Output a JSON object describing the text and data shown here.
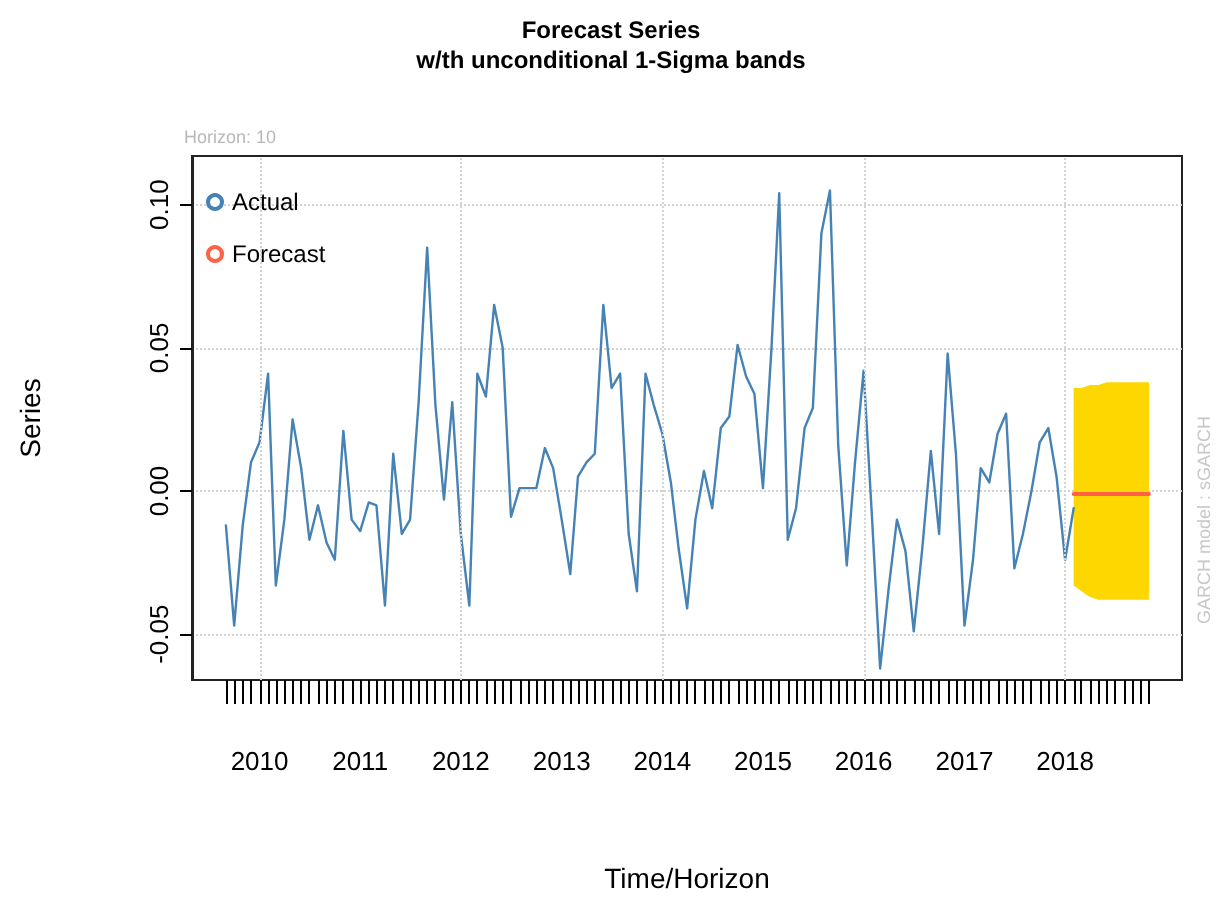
{
  "chart_data": {
    "type": "line",
    "title": "Forecast Series",
    "subtitle": "w/th unconditional 1-Sigma bands",
    "xlabel": "Time/Horizon",
    "ylabel": "Series",
    "annotations": [
      "Horizon: 10",
      "GARCH model : sGARCH"
    ],
    "x": [
      "2009-09",
      "2009-10",
      "2009-11",
      "2009-12",
      "2010-01",
      "2010-02",
      "2010-03",
      "2010-04",
      "2010-05",
      "2010-06",
      "2010-07",
      "2010-08",
      "2010-09",
      "2010-10",
      "2010-11",
      "2010-12",
      "2011-01",
      "2011-02",
      "2011-03",
      "2011-04",
      "2011-05",
      "2011-06",
      "2011-07",
      "2011-08",
      "2011-09",
      "2011-10",
      "2011-11",
      "2011-12",
      "2012-01",
      "2012-02",
      "2012-03",
      "2012-04",
      "2012-05",
      "2012-06",
      "2012-07",
      "2012-08",
      "2012-09",
      "2012-10",
      "2012-11",
      "2012-12",
      "2013-01",
      "2013-02",
      "2013-03",
      "2013-04",
      "2013-05",
      "2013-06",
      "2013-07",
      "2013-08",
      "2013-09",
      "2013-10",
      "2013-11",
      "2013-12",
      "2014-01",
      "2014-02",
      "2014-03",
      "2014-04",
      "2014-05",
      "2014-06",
      "2014-07",
      "2014-08",
      "2014-09",
      "2014-10",
      "2014-11",
      "2014-12",
      "2015-01",
      "2015-02",
      "2015-03",
      "2015-04",
      "2015-05",
      "2015-06",
      "2015-07",
      "2015-08",
      "2015-09",
      "2015-10",
      "2015-11",
      "2015-12",
      "2016-01",
      "2016-02",
      "2016-03",
      "2016-04",
      "2016-05",
      "2016-06",
      "2016-07",
      "2016-08",
      "2016-09",
      "2016-10",
      "2016-11",
      "2016-12",
      "2017-01",
      "2017-02",
      "2017-03",
      "2017-04",
      "2017-05",
      "2017-06",
      "2017-07",
      "2017-08",
      "2017-09",
      "2017-10",
      "2017-11",
      "2017-12",
      "2018-01",
      "2018-02"
    ],
    "series": [
      {
        "name": "Actual",
        "color": "#4682b4",
        "values": [
          -0.012,
          -0.047,
          -0.012,
          0.01,
          0.017,
          0.041,
          -0.033,
          -0.01,
          0.025,
          0.008,
          -0.017,
          -0.005,
          -0.018,
          -0.024,
          0.021,
          -0.01,
          -0.014,
          -0.004,
          -0.005,
          -0.04,
          0.013,
          -0.015,
          -0.01,
          0.031,
          0.085,
          0.03,
          -0.003,
          0.031,
          -0.015,
          -0.04,
          0.041,
          0.033,
          0.065,
          0.05,
          -0.009,
          0.001,
          0.001,
          0.001,
          0.015,
          0.008,
          -0.01,
          -0.029,
          0.005,
          0.01,
          0.013,
          0.065,
          0.036,
          0.041,
          -0.015,
          -0.035,
          0.041,
          0.03,
          0.02,
          0.003,
          -0.02,
          -0.041,
          -0.01,
          0.007,
          -0.006,
          0.022,
          0.026,
          0.051,
          0.04,
          0.034,
          0.001,
          0.05,
          0.104,
          -0.017,
          -0.006,
          0.022,
          0.029,
          0.09,
          0.105,
          0.016,
          -0.026,
          0.01,
          0.042,
          -0.01,
          -0.062,
          -0.034,
          -0.01,
          -0.021,
          -0.049,
          -0.02,
          0.014,
          -0.015,
          0.048,
          0.013,
          -0.047,
          -0.024,
          0.008,
          0.003,
          0.02,
          0.027,
          -0.027,
          -0.015,
          0.0,
          0.017,
          0.022,
          0.005,
          -0.024,
          -0.006
        ]
      },
      {
        "name": "Forecast",
        "color": "#ff6347",
        "x": [
          "2018-02",
          "2018-03",
          "2018-04",
          "2018-05",
          "2018-06",
          "2018-07",
          "2018-08",
          "2018-09",
          "2018-10",
          "2018-11"
        ],
        "values": [
          -0.001,
          -0.001,
          -0.001,
          -0.001,
          -0.001,
          -0.001,
          -0.001,
          -0.001,
          -0.001,
          -0.001
        ],
        "lower": [
          -0.033,
          -0.035,
          -0.037,
          -0.038,
          -0.038,
          -0.038,
          -0.038,
          -0.038,
          -0.038,
          -0.038
        ],
        "upper": [
          0.036,
          0.036,
          0.037,
          0.037,
          0.038,
          0.038,
          0.038,
          0.038,
          0.038,
          0.038
        ]
      }
    ],
    "xlim": [
      "2009-05",
      "2019-03"
    ],
    "xticks": [
      {
        "value": "2009-09",
        "label": null
      },
      {
        "value": "2009-10",
        "label": null
      },
      {
        "value": "2009-11",
        "label": null
      },
      {
        "value": "2009-12",
        "label": null
      },
      {
        "value": "2010-01",
        "label": "2010"
      },
      {
        "value": "2010-02",
        "label": null
      },
      {
        "value": "2010-03",
        "label": null
      },
      {
        "value": "2010-04",
        "label": null
      },
      {
        "value": "2010-05",
        "label": null
      },
      {
        "value": "2010-06",
        "label": null
      },
      {
        "value": "2010-07",
        "label": null
      },
      {
        "value": "2010-08",
        "label": null
      },
      {
        "value": "2010-09",
        "label": null
      },
      {
        "value": "2010-10",
        "label": null
      },
      {
        "value": "2010-11",
        "label": null
      },
      {
        "value": "2010-12",
        "label": null
      },
      {
        "value": "2011-01",
        "label": "2011"
      },
      {
        "value": "2011-02",
        "label": null
      },
      {
        "value": "2011-03",
        "label": null
      },
      {
        "value": "2011-04",
        "label": null
      },
      {
        "value": "2011-05",
        "label": null
      },
      {
        "value": "2011-06",
        "label": null
      },
      {
        "value": "2011-07",
        "label": null
      },
      {
        "value": "2011-08",
        "label": null
      },
      {
        "value": "2011-09",
        "label": null
      },
      {
        "value": "2011-10",
        "label": null
      },
      {
        "value": "2011-11",
        "label": null
      },
      {
        "value": "2011-12",
        "label": null
      },
      {
        "value": "2012-01",
        "label": "2012"
      },
      {
        "value": "2012-02",
        "label": null
      },
      {
        "value": "2012-03",
        "label": null
      },
      {
        "value": "2012-04",
        "label": null
      },
      {
        "value": "2012-05",
        "label": null
      },
      {
        "value": "2012-06",
        "label": null
      },
      {
        "value": "2012-07",
        "label": null
      },
      {
        "value": "2012-08",
        "label": null
      },
      {
        "value": "2012-09",
        "label": null
      },
      {
        "value": "2012-10",
        "label": null
      },
      {
        "value": "2012-11",
        "label": null
      },
      {
        "value": "2012-12",
        "label": null
      },
      {
        "value": "2013-01",
        "label": "2013"
      },
      {
        "value": "2013-02",
        "label": null
      },
      {
        "value": "2013-03",
        "label": null
      },
      {
        "value": "2013-04",
        "label": null
      },
      {
        "value": "2013-05",
        "label": null
      },
      {
        "value": "2013-06",
        "label": null
      },
      {
        "value": "2013-07",
        "label": null
      },
      {
        "value": "2013-08",
        "label": null
      },
      {
        "value": "2013-09",
        "label": null
      },
      {
        "value": "2013-10",
        "label": null
      },
      {
        "value": "2013-11",
        "label": null
      },
      {
        "value": "2013-12",
        "label": null
      },
      {
        "value": "2014-01",
        "label": "2014"
      },
      {
        "value": "2014-02",
        "label": null
      },
      {
        "value": "2014-03",
        "label": null
      },
      {
        "value": "2014-04",
        "label": null
      },
      {
        "value": "2014-05",
        "label": null
      },
      {
        "value": "2014-06",
        "label": null
      },
      {
        "value": "2014-07",
        "label": null
      },
      {
        "value": "2014-08",
        "label": null
      },
      {
        "value": "2014-09",
        "label": null
      },
      {
        "value": "2014-10",
        "label": null
      },
      {
        "value": "2014-11",
        "label": null
      },
      {
        "value": "2014-12",
        "label": null
      },
      {
        "value": "2015-01",
        "label": "2015"
      },
      {
        "value": "2015-02",
        "label": null
      },
      {
        "value": "2015-03",
        "label": null
      },
      {
        "value": "2015-04",
        "label": null
      },
      {
        "value": "2015-05",
        "label": null
      },
      {
        "value": "2015-06",
        "label": null
      },
      {
        "value": "2015-07",
        "label": null
      },
      {
        "value": "2015-08",
        "label": null
      },
      {
        "value": "2015-09",
        "label": null
      },
      {
        "value": "2015-10",
        "label": null
      },
      {
        "value": "2015-11",
        "label": null
      },
      {
        "value": "2015-12",
        "label": null
      },
      {
        "value": "2016-01",
        "label": "2016"
      },
      {
        "value": "2016-02",
        "label": null
      },
      {
        "value": "2016-03",
        "label": null
      },
      {
        "value": "2016-04",
        "label": null
      },
      {
        "value": "2016-05",
        "label": null
      },
      {
        "value": "2016-06",
        "label": null
      },
      {
        "value": "2016-07",
        "label": null
      },
      {
        "value": "2016-08",
        "label": null
      },
      {
        "value": "2016-09",
        "label": null
      },
      {
        "value": "2016-10",
        "label": null
      },
      {
        "value": "2016-11",
        "label": null
      },
      {
        "value": "2016-12",
        "label": null
      },
      {
        "value": "2017-01",
        "label": "2017"
      },
      {
        "value": "2017-02",
        "label": null
      },
      {
        "value": "2017-03",
        "label": null
      },
      {
        "value": "2017-04",
        "label": null
      },
      {
        "value": "2017-05",
        "label": null
      },
      {
        "value": "2017-06",
        "label": null
      },
      {
        "value": "2017-07",
        "label": null
      },
      {
        "value": "2017-08",
        "label": null
      },
      {
        "value": "2017-09",
        "label": null
      },
      {
        "value": "2017-10",
        "label": null
      },
      {
        "value": "2017-11",
        "label": null
      },
      {
        "value": "2017-12",
        "label": null
      },
      {
        "value": "2018-01",
        "label": "2018"
      },
      {
        "value": "2018-02",
        "label": null
      },
      {
        "value": "2018-03",
        "label": null
      },
      {
        "value": "2018-04",
        "label": null
      },
      {
        "value": "2018-05",
        "label": null
      },
      {
        "value": "2018-06",
        "label": null
      },
      {
        "value": "2018-07",
        "label": null
      },
      {
        "value": "2018-08",
        "label": null
      },
      {
        "value": "2018-09",
        "label": null
      },
      {
        "value": "2018-10",
        "label": null
      },
      {
        "value": "2018-11",
        "label": null
      }
    ],
    "ylim": [
      -0.066,
      0.117
    ],
    "yticks": [
      {
        "value": -0.05,
        "label": "-0.05"
      },
      {
        "value": 0,
        "label": "0.00"
      },
      {
        "value": 0.05,
        "label": "0.05"
      },
      {
        "value": 0.1,
        "label": "0.10"
      }
    ],
    "ref_lines": [
      {
        "axis": "x",
        "value": "2010-01",
        "color": "#d3d3d3",
        "line_style": "dotted"
      },
      {
        "axis": "x",
        "value": "2012-01",
        "color": "#d3d3d3",
        "line_style": "dotted"
      },
      {
        "axis": "x",
        "value": "2014-01",
        "color": "#d3d3d3",
        "line_style": "dotted"
      },
      {
        "axis": "x",
        "value": "2016-01",
        "color": "#d3d3d3",
        "line_style": "dotted"
      },
      {
        "axis": "x",
        "value": "2018-01",
        "color": "#d3d3d3",
        "line_style": "dotted"
      }
    ],
    "grid": "y",
    "legend": "top left",
    "marker": "none",
    "line_style": "solid"
  }
}
